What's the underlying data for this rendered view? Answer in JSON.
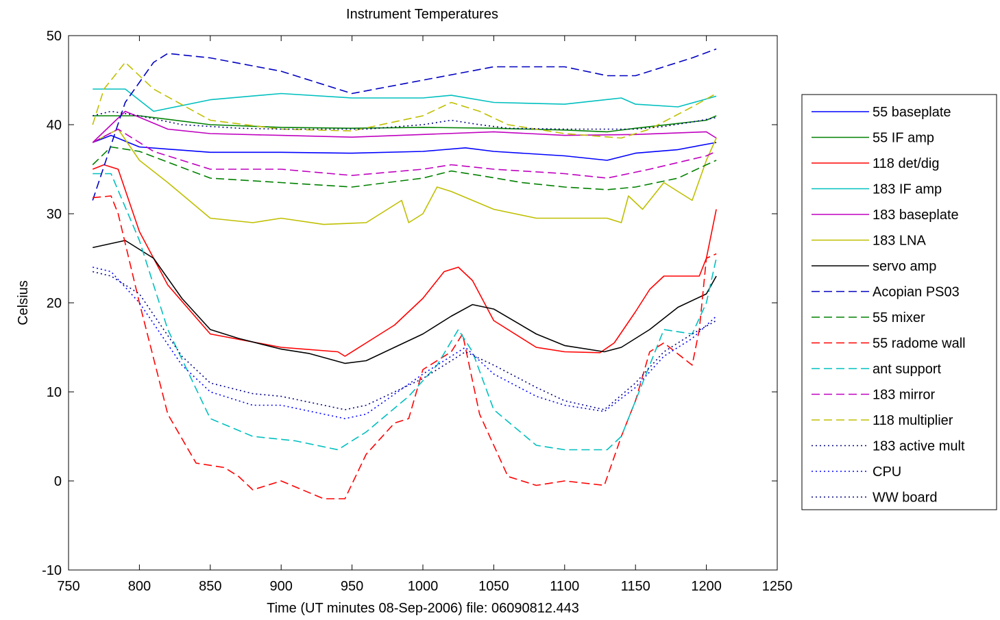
{
  "chart_data": {
    "type": "line",
    "title": "Instrument Temperatures",
    "xlabel": "Time (UT minutes 08-Sep-2006) file: 06090812.443",
    "ylabel": "Celsius",
    "xlim": [
      750,
      1250
    ],
    "ylim": [
      -10,
      50
    ],
    "xticks": [
      750,
      800,
      850,
      900,
      950,
      1000,
      1050,
      1100,
      1150,
      1200,
      1250
    ],
    "yticks": [
      -10,
      0,
      10,
      20,
      30,
      40,
      50
    ],
    "xtick_labels": [
      "750",
      "800",
      "850",
      "900",
      "950",
      "1000",
      "1050",
      "1100",
      "1150",
      "1200",
      "1250"
    ],
    "ytick_labels": [
      "-10",
      "0",
      "10",
      "20",
      "30",
      "40",
      "50"
    ],
    "grid": false,
    "legend_position": "outside-right",
    "series": [
      {
        "name": "55 baseplate",
        "color": "#0000ff",
        "style": "solid",
        "x": [
          767,
          780,
          800,
          850,
          900,
          950,
          1000,
          1030,
          1050,
          1100,
          1130,
          1150,
          1180,
          1200,
          1207
        ],
        "y": [
          38.0,
          38.8,
          37.5,
          36.9,
          36.9,
          36.8,
          37.0,
          37.4,
          37.0,
          36.5,
          36.0,
          36.8,
          37.2,
          37.8,
          38.0
        ]
      },
      {
        "name": "55 IF amp",
        "color": "#008000",
        "style": "solid",
        "x": [
          767,
          800,
          850,
          900,
          950,
          1000,
          1050,
          1100,
          1130,
          1150,
          1200,
          1207
        ],
        "y": [
          41.0,
          41.0,
          40.0,
          39.7,
          39.6,
          39.7,
          39.6,
          39.4,
          39.2,
          39.6,
          40.5,
          41.0
        ]
      },
      {
        "name": "118 det/dig",
        "color": "#ff0000",
        "style": "solid",
        "x": [
          767,
          775,
          785,
          800,
          820,
          850,
          900,
          940,
          945,
          960,
          980,
          1000,
          1015,
          1025,
          1035,
          1050,
          1080,
          1100,
          1125,
          1135,
          1150,
          1160,
          1170,
          1185,
          1195,
          1200,
          1207
        ],
        "y": [
          35.0,
          35.5,
          35.0,
          28.0,
          22.0,
          16.5,
          15.0,
          14.5,
          14.0,
          15.5,
          17.5,
          20.5,
          23.5,
          24.0,
          22.5,
          18.0,
          15.0,
          14.5,
          14.4,
          15.5,
          19.0,
          21.5,
          23.0,
          23.0,
          23.0,
          25.0,
          30.5
        ]
      },
      {
        "name": "183 IF amp",
        "color": "#00bfbf",
        "style": "solid",
        "x": [
          767,
          790,
          810,
          850,
          900,
          950,
          970,
          1000,
          1020,
          1050,
          1100,
          1140,
          1150,
          1180,
          1207
        ],
        "y": [
          44.0,
          44.0,
          41.5,
          42.8,
          43.5,
          43.0,
          43.0,
          43.0,
          43.3,
          42.5,
          42.3,
          43.0,
          42.3,
          42.0,
          43.2
        ]
      },
      {
        "name": "183 baseplate",
        "color": "#bf00bf",
        "style": "solid",
        "x": [
          767,
          790,
          820,
          850,
          900,
          950,
          1000,
          1050,
          1100,
          1150,
          1200,
          1207
        ],
        "y": [
          38.0,
          41.5,
          39.5,
          39.0,
          38.8,
          38.6,
          38.9,
          39.2,
          38.8,
          38.9,
          39.2,
          38.5
        ]
      },
      {
        "name": "183 LNA",
        "color": "#bfbf00",
        "style": "solid",
        "x": [
          767,
          785,
          800,
          820,
          850,
          880,
          900,
          930,
          960,
          985,
          990,
          1000,
          1010,
          1020,
          1050,
          1080,
          1100,
          1130,
          1140,
          1145,
          1155,
          1170,
          1180,
          1190,
          1200,
          1207
        ],
        "y": [
          38.0,
          39.5,
          36.0,
          33.5,
          29.5,
          29.0,
          29.5,
          28.8,
          29.0,
          31.5,
          29.0,
          30.0,
          33.0,
          32.5,
          30.5,
          29.5,
          29.5,
          29.5,
          29.0,
          32.0,
          30.5,
          33.5,
          32.5,
          31.5,
          36.0,
          38.5
        ]
      },
      {
        "name": "servo amp",
        "color": "#000000",
        "style": "solid",
        "x": [
          767,
          790,
          810,
          830,
          850,
          870,
          900,
          920,
          945,
          960,
          980,
          1000,
          1020,
          1035,
          1050,
          1080,
          1100,
          1128,
          1140,
          1160,
          1180,
          1200,
          1207
        ],
        "y": [
          26.2,
          27.0,
          25.0,
          20.5,
          17.0,
          16.0,
          14.8,
          14.3,
          13.2,
          13.5,
          15.0,
          16.5,
          18.5,
          19.8,
          19.3,
          16.5,
          15.2,
          14.5,
          15.0,
          17.0,
          19.5,
          21.0,
          23.0
        ]
      },
      {
        "name": "Acopian PS03",
        "color": "#0000c0",
        "style": "dashed",
        "x": [
          767,
          790,
          810,
          820,
          850,
          900,
          950,
          1000,
          1050,
          1100,
          1130,
          1150,
          1170,
          1190,
          1207
        ],
        "y": [
          31.5,
          42.5,
          47.0,
          48.0,
          47.5,
          46.0,
          43.5,
          45.0,
          46.5,
          46.5,
          45.5,
          45.5,
          46.5,
          47.5,
          48.5
        ]
      },
      {
        "name": "55 mixer",
        "color": "#008000",
        "style": "dashed",
        "x": [
          767,
          780,
          800,
          850,
          900,
          950,
          1000,
          1020,
          1040,
          1070,
          1100,
          1130,
          1150,
          1180,
          1200,
          1207
        ],
        "y": [
          35.5,
          37.5,
          37.0,
          34.0,
          33.5,
          33.0,
          34.0,
          34.8,
          34.3,
          33.5,
          33.0,
          32.7,
          33.0,
          34.0,
          35.5,
          36.0
        ]
      },
      {
        "name": "55 radome wall",
        "color": "#ff0000",
        "style": "dashed",
        "x": [
          767,
          780,
          785,
          800,
          820,
          840,
          860,
          870,
          880,
          900,
          930,
          945,
          960,
          980,
          990,
          1000,
          1020,
          1028,
          1040,
          1060,
          1080,
          1100,
          1128,
          1140,
          1150,
          1160,
          1170,
          1190,
          1195,
          1200,
          1207
        ],
        "y": [
          31.8,
          32.0,
          30.0,
          20.0,
          7.5,
          2.0,
          1.5,
          0.5,
          -1.0,
          0.0,
          -2.0,
          -2.0,
          3.0,
          6.5,
          7.0,
          12.5,
          14.5,
          16.5,
          7.5,
          0.5,
          -0.5,
          0.0,
          -0.5,
          5.0,
          9.0,
          14.5,
          15.5,
          13.0,
          17.0,
          25.0,
          25.5
        ]
      },
      {
        "name": "ant support",
        "color": "#00bfbf",
        "style": "dashed",
        "x": [
          767,
          780,
          800,
          820,
          850,
          880,
          910,
          940,
          960,
          990,
          1010,
          1025,
          1035,
          1050,
          1080,
          1100,
          1130,
          1140,
          1160,
          1170,
          1190,
          1200,
          1207
        ],
        "y": [
          34.5,
          34.5,
          27.0,
          17.0,
          7.0,
          5.0,
          4.5,
          3.5,
          5.5,
          9.5,
          13.0,
          17.0,
          14.5,
          8.0,
          4.0,
          3.5,
          3.5,
          5.0,
          13.0,
          17.0,
          16.5,
          20.0,
          25.0
        ]
      },
      {
        "name": "183 mirror",
        "color": "#bf00bf",
        "style": "dashed",
        "x": [
          767,
          785,
          810,
          850,
          900,
          950,
          1000,
          1020,
          1050,
          1100,
          1130,
          1160,
          1200,
          1207
        ],
        "y": [
          38.0,
          39.5,
          37.0,
          35.0,
          35.0,
          34.3,
          35.0,
          35.5,
          35.0,
          34.5,
          34.0,
          35.0,
          36.5,
          37.0
        ]
      },
      {
        "name": "118 multiplier",
        "color": "#bfbf00",
        "style": "dashed",
        "x": [
          767,
          775,
          790,
          810,
          850,
          900,
          950,
          1000,
          1020,
          1040,
          1060,
          1100,
          1140,
          1160,
          1190,
          1207
        ],
        "y": [
          40.0,
          44.0,
          47.0,
          44.0,
          40.5,
          39.5,
          39.3,
          41.0,
          42.5,
          41.5,
          40.0,
          39.0,
          38.5,
          39.5,
          42.0,
          43.5
        ]
      },
      {
        "name": "183 active mult",
        "color": "#000080",
        "style": "dotted",
        "x": [
          767,
          780,
          800,
          830,
          850,
          870,
          900,
          940,
          960,
          1000,
          1020,
          1040,
          1060,
          1100,
          1130,
          1150,
          1170,
          1190,
          1207
        ],
        "y": [
          41.0,
          41.5,
          41.0,
          40.0,
          39.8,
          39.6,
          39.5,
          39.5,
          39.5,
          40.0,
          40.5,
          40.0,
          39.6,
          39.5,
          39.5,
          39.5,
          39.8,
          40.3,
          40.8
        ]
      },
      {
        "name": "CPU",
        "color": "#0000ff",
        "style": "dotted",
        "x": [
          767,
          780,
          800,
          830,
          850,
          880,
          900,
          945,
          960,
          1000,
          1030,
          1050,
          1080,
          1100,
          1128,
          1150,
          1170,
          1190,
          1207
        ],
        "y": [
          24.0,
          23.5,
          20.0,
          13.0,
          10.0,
          8.5,
          8.5,
          7.0,
          7.5,
          12.0,
          15.0,
          12.0,
          9.5,
          8.5,
          7.8,
          10.5,
          14.0,
          16.0,
          18.5
        ]
      },
      {
        "name": "WW board",
        "color": "#000080",
        "style": "dotted",
        "x": [
          767,
          780,
          800,
          830,
          850,
          880,
          900,
          945,
          960,
          1000,
          1030,
          1050,
          1080,
          1100,
          1128,
          1150,
          1170,
          1190,
          1207
        ],
        "y": [
          23.5,
          23.0,
          21.0,
          14.0,
          11.0,
          9.8,
          9.5,
          8.0,
          8.5,
          11.5,
          14.5,
          13.0,
          10.5,
          9.0,
          8.0,
          11.0,
          14.5,
          16.5,
          18.0
        ]
      }
    ]
  }
}
